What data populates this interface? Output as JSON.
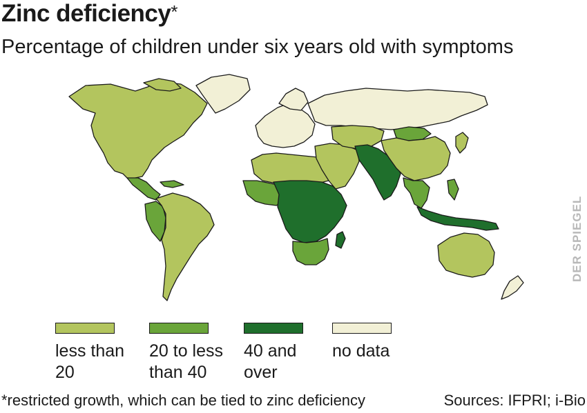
{
  "header": {
    "title": "Zinc deficiency",
    "title_marker": "*",
    "subtitle": "Percentage of children under six years old with symptoms"
  },
  "credit": "DER SPIEGEL",
  "colors": {
    "less_than_20": "#b3c55e",
    "20_to_40": "#6aa53a",
    "40_and_over": "#1f6f2c",
    "no_data": "#f2f0d6",
    "border": "#1a1a1a"
  },
  "legend": [
    {
      "line1": "less than",
      "line2": "20",
      "color": "#b3c55e"
    },
    {
      "line1": "20 to less",
      "line2": "than 40",
      "color": "#6aa53a"
    },
    {
      "line1": "40 and",
      "line2": "over",
      "color": "#1f6f2c"
    },
    {
      "line1": "no data",
      "line2": "",
      "color": "#f2f0d6"
    }
  ],
  "footnote": "*restricted growth, which can be tied to zinc deficiency",
  "sources": "Sources: IFPRI; i-Bio"
}
